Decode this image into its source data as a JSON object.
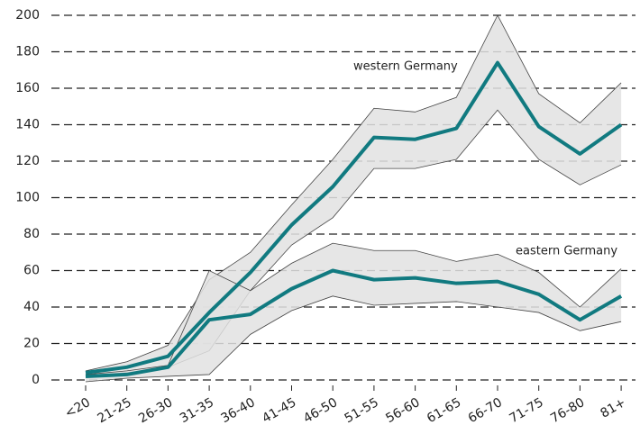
{
  "chart_data": {
    "type": "line",
    "categories": [
      "<20",
      "21-25",
      "26-30",
      "31-35",
      "36-40",
      "41-45",
      "46-50",
      "51-55",
      "56-60",
      "61-65",
      "66-70",
      "71-75",
      "76-80",
      "81+"
    ],
    "series": [
      {
        "name": "western Germany",
        "color": "#117a80",
        "values": [
          4,
          7,
          13,
          37,
          59,
          85,
          106,
          133,
          132,
          138,
          174,
          139,
          124,
          140
        ],
        "upper": [
          5,
          10,
          19,
          55,
          70,
          96,
          121,
          149,
          147,
          155,
          200,
          157,
          141,
          163
        ],
        "lower": [
          2,
          4,
          7,
          16,
          49,
          74,
          89,
          116,
          116,
          121,
          148,
          121,
          107,
          118
        ]
      },
      {
        "name": "eastern Germany",
        "color": "#117a80",
        "values": [
          2,
          3,
          7,
          33,
          36,
          50,
          60,
          55,
          56,
          53,
          54,
          47,
          33,
          46
        ],
        "upper": [
          3,
          5,
          8,
          60,
          49,
          64,
          75,
          71,
          71,
          65,
          69,
          59,
          40,
          61
        ],
        "lower": [
          -1,
          1,
          2,
          3,
          25,
          38,
          46,
          41,
          42,
          43,
          40,
          37,
          27,
          32
        ]
      }
    ],
    "band_color": "#e2e2e2",
    "ylim": [
      0,
      200
    ],
    "yticks": [
      0,
      20,
      40,
      60,
      80,
      100,
      120,
      140,
      160,
      180,
      200
    ],
    "grid": true
  }
}
